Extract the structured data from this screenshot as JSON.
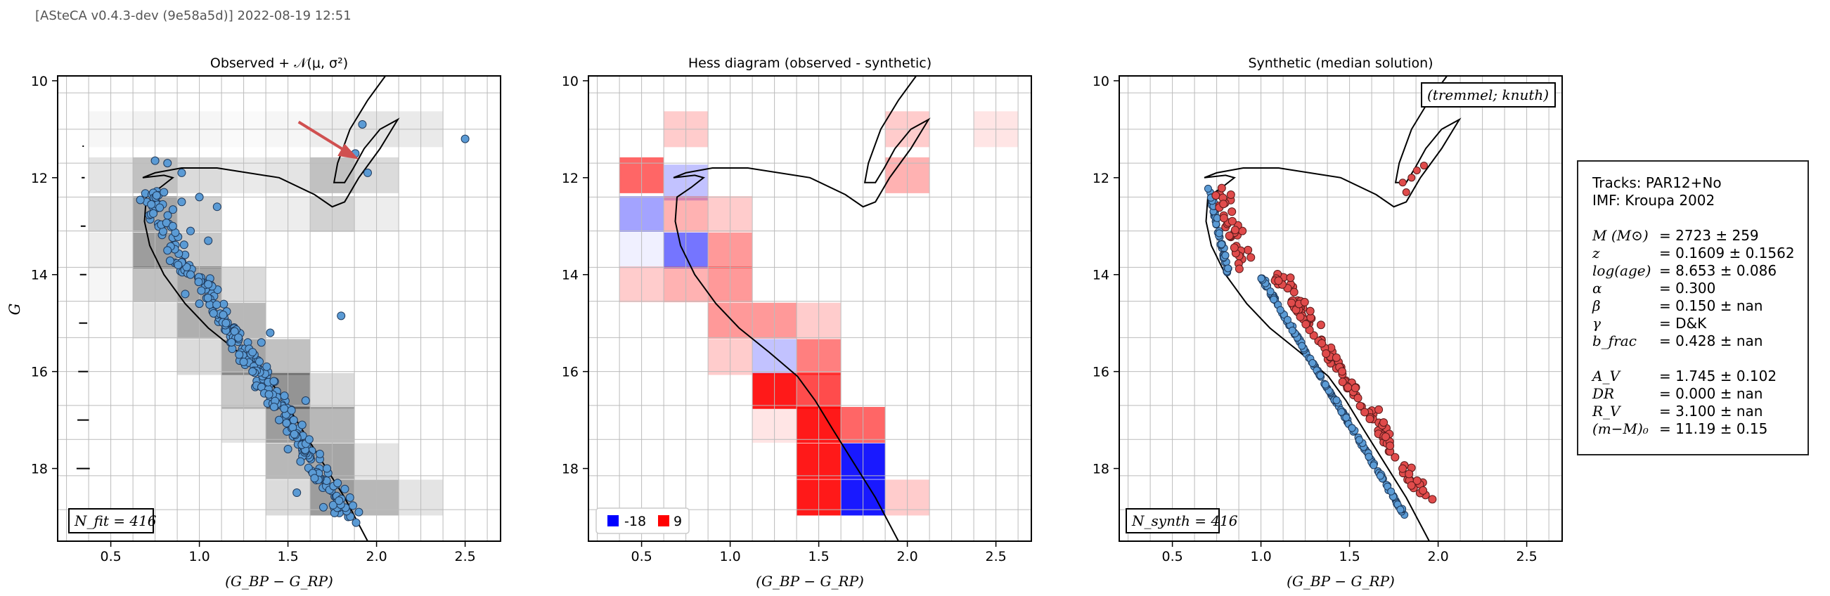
{
  "header": "[ASteCA v0.4.3-dev (9e58a5d)] 2022-08-19 12:51",
  "axes": {
    "xlabel": "(G_BP − G_RP)",
    "ylabel": "G",
    "xlim": [
      0.2,
      2.7
    ],
    "ylim": [
      19.5,
      9.9
    ],
    "xticks": [
      "0.5",
      "1.0",
      "1.5",
      "2.0",
      "2.5"
    ],
    "yticks": [
      "10",
      "12",
      "14",
      "16",
      "18"
    ]
  },
  "panels": {
    "observed": {
      "title": "Observed + 𝒩(μ, σ²)",
      "count_label": "N_fit = 416"
    },
    "hess": {
      "title": "Hess diagram (observed - synthetic)",
      "legend": [
        "-18",
        "9"
      ]
    },
    "synthetic": {
      "title": "Synthetic (median solution)",
      "count_label": "N_synth = 416",
      "tag": "(tremmel; knuth)"
    }
  },
  "info": {
    "tracks": "Tracks: PAR12+No",
    "imf": "IMF: Kroupa 2002",
    "params": [
      {
        "sym": "M (M⊙)",
        "val": "=  2723 ± 259"
      },
      {
        "sym": "z",
        "val": "=  0.1609 ± 0.1562"
      },
      {
        "sym": "log(age)",
        "val": "=  8.653 ± 0.086"
      },
      {
        "sym": "α",
        "val": "=  0.300"
      },
      {
        "sym": "β",
        "val": "=  0.150 ± nan"
      },
      {
        "sym": "γ",
        "val": "=  D&K"
      },
      {
        "sym": "b_frac",
        "val": "=  0.428 ± nan"
      }
    ],
    "params2": [
      {
        "sym": "A_V",
        "val": "=  1.745 ± 0.102"
      },
      {
        "sym": "DR",
        "val": "=  0.000 ± nan"
      },
      {
        "sym": "R_V",
        "val": "=  3.100 ± nan"
      },
      {
        "sym": "(m−M)₀",
        "val": "=  11.19 ± 0.15"
      }
    ]
  },
  "colors": {
    "obs_star": "#5b9bd5",
    "synth_star": "#e04b4b",
    "isochrone": "#000000",
    "arrow": "#d05050",
    "hess_pos": "#ff0000",
    "hess_neg": "#0000ff"
  },
  "chart_data": [
    {
      "type": "scatter",
      "panel": "observed",
      "title": "Observed + 𝒩(μ, σ²)",
      "xlabel": "(G_BP − G_RP)",
      "ylabel": "G",
      "grid": true,
      "xlim": [
        0.2,
        2.7
      ],
      "ylim": [
        19.5,
        9.9
      ],
      "isochrone": [
        [
          2.05,
          9.9
        ],
        [
          1.95,
          10.4
        ],
        [
          1.85,
          11.0
        ],
        [
          1.78,
          11.7
        ],
        [
          1.76,
          12.1
        ],
        [
          1.82,
          12.1
        ],
        [
          1.87,
          11.8
        ],
        [
          1.93,
          11.4
        ],
        [
          2.02,
          11.0
        ],
        [
          2.12,
          10.8
        ],
        [
          2.02,
          11.4
        ],
        [
          1.9,
          12.0
        ],
        [
          1.82,
          12.5
        ],
        [
          1.75,
          12.6
        ],
        [
          1.65,
          12.35
        ],
        [
          1.45,
          12.0
        ],
        [
          1.1,
          11.8
        ],
        [
          0.9,
          11.8
        ],
        [
          0.75,
          11.9
        ],
        [
          0.68,
          12.0
        ],
        [
          0.8,
          11.95
        ],
        [
          0.85,
          12.0
        ],
        [
          0.78,
          12.2
        ],
        [
          0.7,
          12.4
        ],
        [
          0.69,
          12.9
        ],
        [
          0.72,
          13.4
        ],
        [
          0.8,
          14.0
        ],
        [
          0.92,
          14.6
        ],
        [
          1.05,
          15.1
        ],
        [
          1.22,
          15.6
        ],
        [
          1.38,
          16.1
        ],
        [
          1.48,
          16.6
        ],
        [
          1.58,
          17.2
        ],
        [
          1.7,
          17.9
        ],
        [
          1.82,
          18.6
        ],
        [
          1.95,
          19.5
        ]
      ],
      "stars_sample": [
        [
          0.75,
          11.65
        ],
        [
          0.82,
          11.7
        ],
        [
          0.9,
          11.9
        ],
        [
          0.8,
          12.3
        ],
        [
          0.9,
          12.5
        ],
        [
          1.0,
          12.4
        ],
        [
          1.1,
          12.6
        ],
        [
          0.85,
          13.0
        ],
        [
          0.95,
          13.1
        ],
        [
          1.05,
          13.3
        ],
        [
          0.82,
          13.5
        ],
        [
          0.88,
          13.8
        ],
        [
          0.95,
          14.0
        ],
        [
          1.05,
          14.2
        ],
        [
          0.92,
          14.4
        ],
        [
          1.0,
          14.6
        ],
        [
          1.08,
          14.8
        ],
        [
          1.15,
          15.0
        ],
        [
          1.22,
          15.3
        ],
        [
          1.3,
          15.6
        ],
        [
          1.38,
          15.9
        ],
        [
          1.42,
          16.2
        ],
        [
          1.48,
          16.5
        ],
        [
          1.52,
          16.8
        ],
        [
          1.58,
          17.1
        ],
        [
          1.62,
          17.4
        ],
        [
          1.68,
          17.7
        ],
        [
          1.72,
          18.0
        ],
        [
          1.78,
          18.3
        ],
        [
          1.85,
          18.6
        ],
        [
          1.9,
          18.9
        ],
        [
          2.5,
          11.2
        ],
        [
          1.92,
          10.9
        ],
        [
          1.88,
          11.5
        ],
        [
          1.95,
          11.9
        ],
        [
          1.8,
          14.85
        ],
        [
          1.65,
          18.2
        ],
        [
          1.55,
          18.5
        ],
        [
          1.3,
          16.0
        ],
        [
          1.45,
          17.0
        ],
        [
          1.35,
          15.4
        ],
        [
          1.25,
          15.8
        ],
        [
          1.6,
          16.6
        ],
        [
          1.5,
          17.6
        ],
        [
          1.7,
          18.8
        ],
        [
          1.4,
          15.2
        ]
      ],
      "count_label": "N_fit = 416"
    },
    {
      "type": "heatmap",
      "panel": "hess",
      "title": "Hess diagram (observed - synthetic)",
      "xlabel": "(G_BP − G_RP)",
      "range": [
        -18,
        9
      ],
      "cells": [
        {
          "x": 0.75,
          "y": 11.0,
          "v": 2
        },
        {
          "x": 0.75,
          "y": 12.1,
          "v": -4
        },
        {
          "x": 0.5,
          "y": 11.95,
          "v": 6
        },
        {
          "x": 0.5,
          "y": 12.75,
          "v": -6
        },
        {
          "x": 0.5,
          "y": 13.5,
          "v": -1
        },
        {
          "x": 0.5,
          "y": 14.2,
          "v": 2
        },
        {
          "x": 0.75,
          "y": 12.75,
          "v": 3
        },
        {
          "x": 0.75,
          "y": 13.5,
          "v": -9
        },
        {
          "x": 0.75,
          "y": 14.2,
          "v": 3
        },
        {
          "x": 1.0,
          "y": 12.75,
          "v": 2
        },
        {
          "x": 1.0,
          "y": 13.5,
          "v": 4
        },
        {
          "x": 1.0,
          "y": 14.2,
          "v": 4
        },
        {
          "x": 1.0,
          "y": 14.95,
          "v": 4
        },
        {
          "x": 1.0,
          "y": 15.7,
          "v": 2
        },
        {
          "x": 1.25,
          "y": 14.95,
          "v": 4
        },
        {
          "x": 1.25,
          "y": 15.7,
          "v": -4
        },
        {
          "x": 1.25,
          "y": 16.4,
          "v": 9
        },
        {
          "x": 1.25,
          "y": 17.1,
          "v": 1
        },
        {
          "x": 1.5,
          "y": 14.95,
          "v": 2
        },
        {
          "x": 1.5,
          "y": 15.7,
          "v": 5
        },
        {
          "x": 1.5,
          "y": 16.4,
          "v": 7
        },
        {
          "x": 1.5,
          "y": 17.1,
          "v": 9
        },
        {
          "x": 1.5,
          "y": 17.85,
          "v": 9
        },
        {
          "x": 1.5,
          "y": 18.6,
          "v": 9
        },
        {
          "x": 1.75,
          "y": 17.1,
          "v": 6
        },
        {
          "x": 1.75,
          "y": 17.85,
          "v": -15
        },
        {
          "x": 1.75,
          "y": 18.6,
          "v": -18
        },
        {
          "x": 2.0,
          "y": 11.0,
          "v": 2
        },
        {
          "x": 2.0,
          "y": 11.95,
          "v": 3
        },
        {
          "x": 2.0,
          "y": 18.6,
          "v": 2
        },
        {
          "x": 2.5,
          "y": 11.0,
          "v": 1
        }
      ],
      "legend": [
        "-18",
        "9"
      ]
    },
    {
      "type": "scatter",
      "panel": "synthetic",
      "title": "Synthetic (median solution)",
      "xlabel": "(G_BP − G_RP)",
      "count_label": "N_synth = 416",
      "tag": "(tremmel; knuth)"
    }
  ]
}
